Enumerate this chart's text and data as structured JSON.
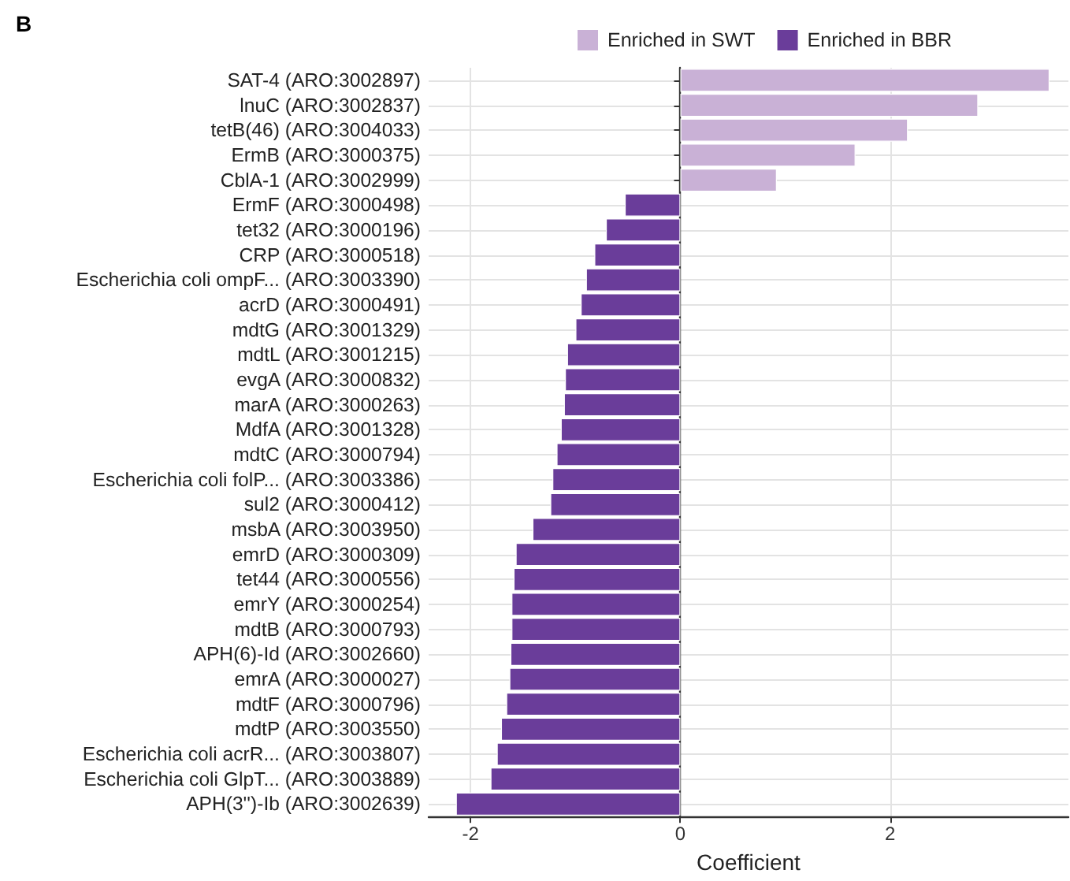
{
  "chart_data": {
    "type": "bar",
    "orientation": "horizontal",
    "annotations": [
      "B"
    ],
    "categories": [
      "SAT-4 (ARO:3002897)",
      "lnuC (ARO:3002837)",
      "tetB(46) (ARO:3004033)",
      "ErmB (ARO:3000375)",
      "CblA-1 (ARO:3002999)",
      "ErmF (ARO:3000498)",
      "tet32 (ARO:3000196)",
      "CRP (ARO:3000518)",
      "Escherichia coli ompF... (ARO:3003390)",
      "acrD (ARO:3000491)",
      "mdtG (ARO:3001329)",
      "mdtL (ARO:3001215)",
      "evgA (ARO:3000832)",
      "marA (ARO:3000263)",
      "MdfA (ARO:3001328)",
      "mdtC (ARO:3000794)",
      "Escherichia coli folP... (ARO:3003386)",
      "sul2 (ARO:3000412)",
      "msbA (ARO:3003950)",
      "emrD (ARO:3000309)",
      "tet44 (ARO:3000556)",
      "emrY (ARO:3000254)",
      "mdtB (ARO:3000793)",
      "APH(6)-Id (ARO:3002660)",
      "emrA (ARO:3000027)",
      "mdtF (ARO:3000796)",
      "mdtP (ARO:3003550)",
      "Escherichia coli acrR... (ARO:3003807)",
      "Escherichia coli GlpT... (ARO:3003889)",
      "APH(3'')-Ib (ARO:3002639)"
    ],
    "series": [
      {
        "name": "Enriched in SWT",
        "color": "#c9b1d6",
        "values": [
          3.52,
          2.84,
          2.17,
          1.67,
          0.92,
          null,
          null,
          null,
          null,
          null,
          null,
          null,
          null,
          null,
          null,
          null,
          null,
          null,
          null,
          null,
          null,
          null,
          null,
          null,
          null,
          null,
          null,
          null,
          null,
          null
        ]
      },
      {
        "name": "Enriched in BBR",
        "color": "#6a3d9a",
        "values": [
          null,
          null,
          null,
          null,
          null,
          -0.53,
          -0.71,
          -0.82,
          -0.9,
          -0.95,
          -1.0,
          -1.08,
          -1.1,
          -1.11,
          -1.14,
          -1.18,
          -1.22,
          -1.24,
          -1.41,
          -1.57,
          -1.59,
          -1.61,
          -1.61,
          -1.62,
          -1.63,
          -1.66,
          -1.71,
          -1.75,
          -1.81,
          -2.14
        ]
      }
    ],
    "xlabel": "Coefficient",
    "xlim": [
      -2.4,
      3.7
    ],
    "xticks": [
      -2,
      0,
      2
    ],
    "grid": true,
    "legend": "top"
  }
}
